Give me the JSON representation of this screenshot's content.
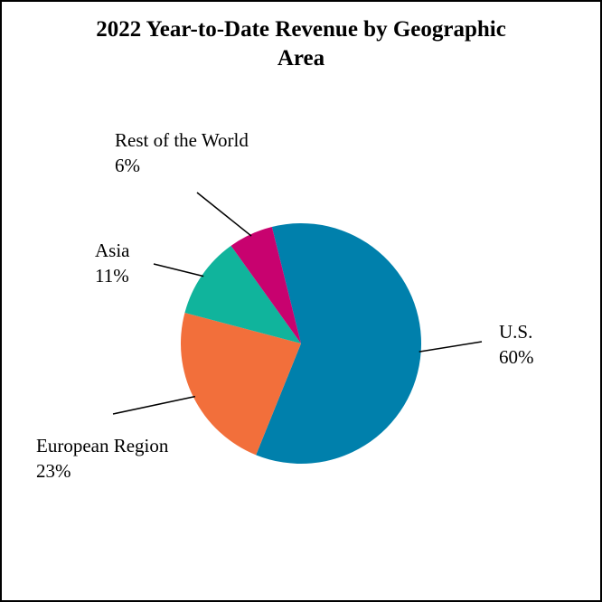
{
  "chart_data": {
    "type": "pie",
    "title": "2022 Year-to-Date Revenue by Geographic Area",
    "categories": [
      "U.S.",
      "European Region",
      "Asia",
      "Rest of the World"
    ],
    "values": [
      60,
      23,
      11,
      6
    ],
    "value_labels": [
      "60%",
      "23%",
      "11%",
      "6%"
    ],
    "colors": [
      "#0080ac",
      "#f26f3b",
      "#10b49c",
      "#c8026f"
    ]
  }
}
